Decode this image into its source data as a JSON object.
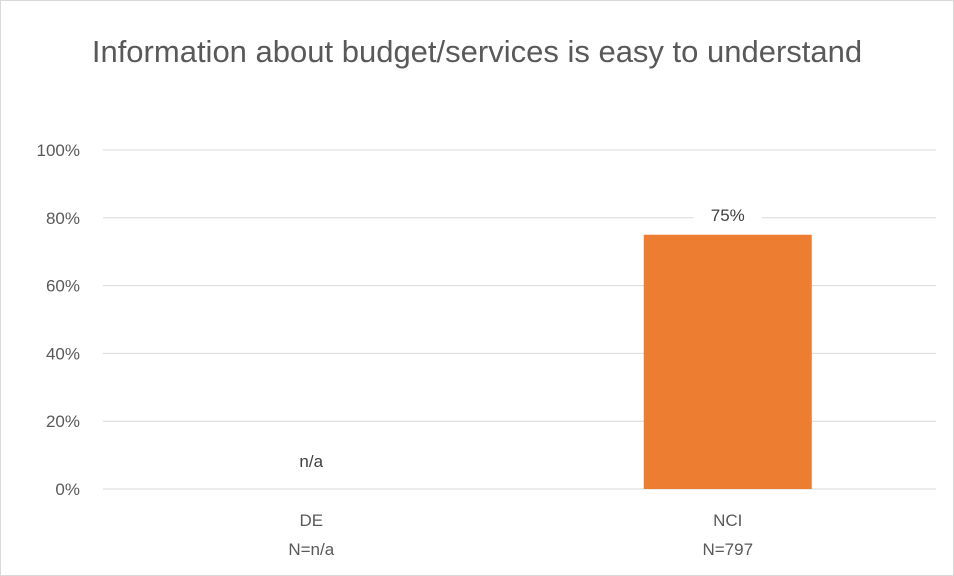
{
  "chart_data": {
    "type": "bar",
    "title": "Information about budget/services is easy to understand",
    "categories": [
      "DE",
      "NCI"
    ],
    "category_sublabels": [
      "N=n/a",
      "N=797"
    ],
    "values": [
      null,
      75
    ],
    "data_labels": [
      "n/a",
      "75%"
    ],
    "ylim": [
      0,
      100
    ],
    "yticks": [
      "0%",
      "20%",
      "40%",
      "60%",
      "80%",
      "100%"
    ],
    "ytick_values": [
      0,
      20,
      40,
      60,
      80,
      100
    ],
    "grid": true,
    "legend": "none",
    "colors": {
      "bar": "#ED7D31",
      "grid": "#d9d9d9",
      "text": "#595959"
    }
  }
}
